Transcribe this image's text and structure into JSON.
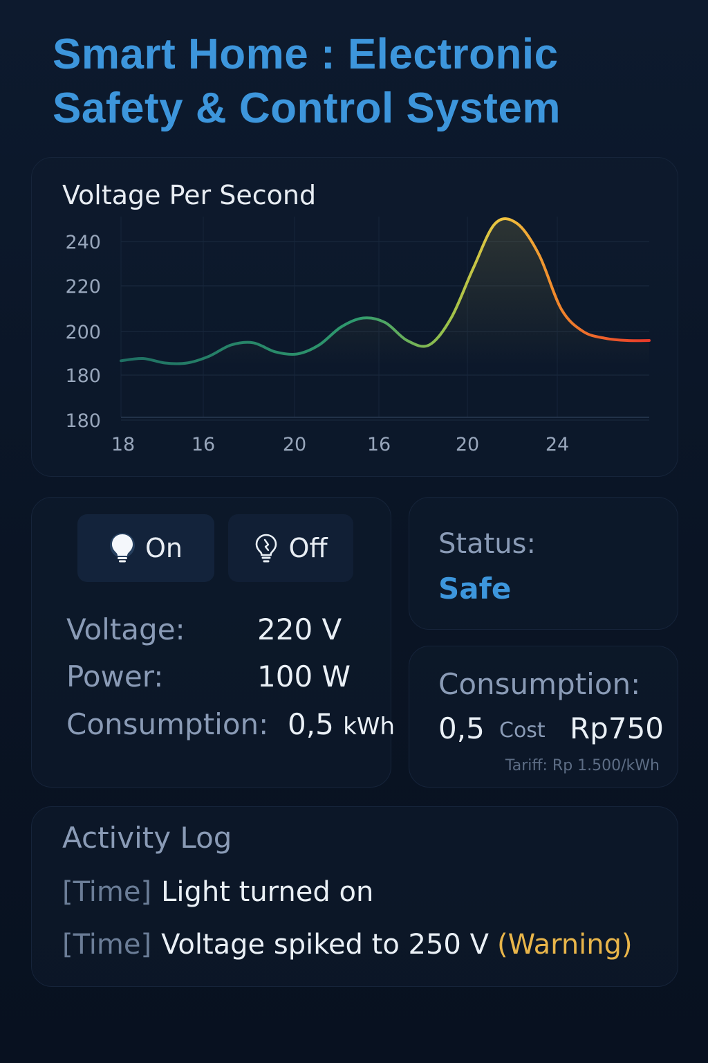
{
  "header": {
    "title_line1": "Smart Home : Electronic",
    "title_line2": "Safety & Control System"
  },
  "colors": {
    "accent": "#3d96dc",
    "warning": "#e8b54a",
    "line_low": "#1e7a6c",
    "line_mid": "#e9d34a",
    "line_high": "#e8432a"
  },
  "chart_data": {
    "type": "line",
    "title": "Voltage Per Second",
    "xlabel": "",
    "ylabel": "",
    "x_ticks": [
      "18",
      "16",
      "20",
      "16",
      "20",
      "24"
    ],
    "y_ticks": [
      "240",
      "220",
      "200",
      "180",
      "180"
    ],
    "grid": true,
    "series": [
      {
        "values": [
          187,
          188,
          186,
          186,
          189,
          194,
          195,
          191,
          190,
          194,
          202,
          206,
          204,
          196,
          194,
          206,
          228,
          248,
          248,
          234,
          210,
          200,
          197,
          196,
          196
        ]
      }
    ],
    "ylim": [
      170,
      250
    ]
  },
  "controls": {
    "on_label": "On",
    "off_label": "Off",
    "voltage_label": "Voltage:",
    "voltage_value": "220 V",
    "power_label": "Power:",
    "power_value": "100 W",
    "consumption_label": "Consumption:",
    "consumption_value": "0,5",
    "consumption_unit": "kWh"
  },
  "status": {
    "label": "Status:",
    "value": "Safe"
  },
  "consumption": {
    "label": "Consumption:",
    "value": "0,5",
    "cost_label": "Cost",
    "cost_value": "Rp750",
    "tariff": "Tariff: Rp 1.500/kWh"
  },
  "activity_log": {
    "title": "Activity Log",
    "entries": [
      {
        "time": "[Time]",
        "message": "Light turned on",
        "warning": ""
      },
      {
        "time": "[Time]",
        "message": "Voltage spiked to 250 V",
        "warning": "(Warning)"
      }
    ]
  }
}
